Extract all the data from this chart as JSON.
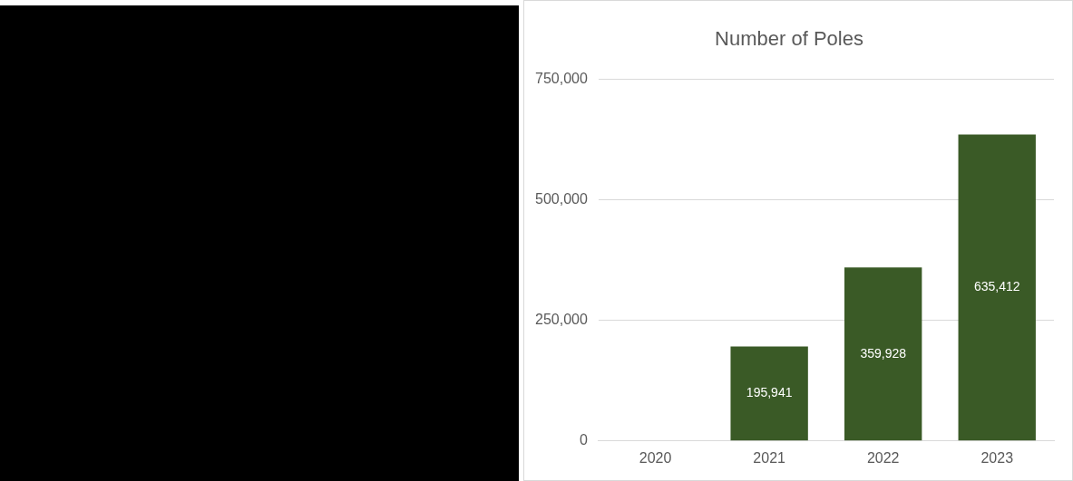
{
  "chart_data": {
    "type": "bar",
    "title": "Number of Poles",
    "categories": [
      "2020",
      "2021",
      "2022",
      "2023"
    ],
    "series": [
      {
        "color": "#3a5a26",
        "values": [
          null,
          195941,
          359928,
          635412
        ],
        "value_labels": [
          null,
          "195,941",
          "359,928",
          "635,412"
        ]
      }
    ],
    "ylim": [
      0,
      750000
    ],
    "yticks": [
      {
        "value": 0,
        "label": "0"
      },
      {
        "value": 250000,
        "label": "250,000"
      },
      {
        "value": 500000,
        "label": "500,000"
      },
      {
        "value": 750000,
        "label": "750,000"
      }
    ],
    "grid": "y",
    "legend": false
  }
}
